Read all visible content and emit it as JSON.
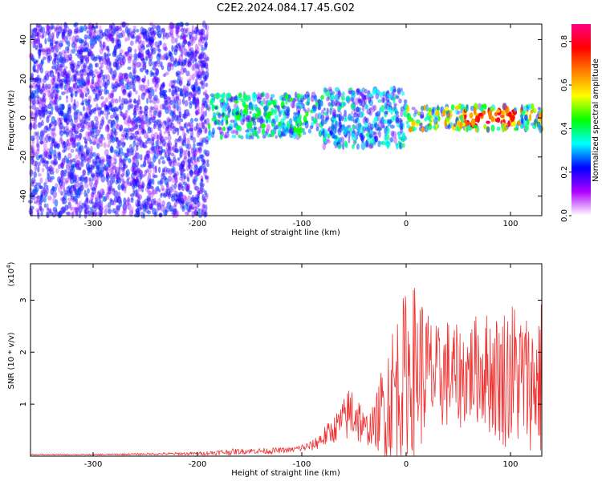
{
  "title": "C2E2.2024.084.17.45.G02",
  "chart_data": [
    {
      "type": "heatmap",
      "xlabel": "Height of straight line (km)",
      "ylabel": "Frequency (Hz)",
      "xlim": [
        -360,
        130
      ],
      "ylim": [
        -50,
        48
      ],
      "x_ticks": [
        -300,
        -200,
        -100,
        0,
        100
      ],
      "y_ticks": [
        -40,
        -20,
        0,
        20,
        40
      ],
      "colorbar": {
        "label": "Normalized spectral amplitude",
        "range": [
          0,
          0.88
        ],
        "ticks": [
          0.0,
          0.2,
          0.4,
          0.6,
          0.8
        ],
        "colors": [
          "#ffffff",
          "#b000ff",
          "#0000ff",
          "#00ffff",
          "#00ff00",
          "#ffff00",
          "#ff8000",
          "#ff0000",
          "#ff0080"
        ]
      },
      "regions": [
        {
          "x_range": [
            -360,
            -190
          ],
          "freq_band": [
            -50,
            48
          ],
          "amplitude": 0.15,
          "description_level": "low, scattered"
        },
        {
          "x_range": [
            -190,
            -80
          ],
          "freq_band": [
            -10,
            12
          ],
          "amplitude": 0.3
        },
        {
          "x_range": [
            -80,
            0
          ],
          "freq_band": [
            -15,
            15
          ],
          "amplitude": 0.25
        },
        {
          "x_range": [
            0,
            130
          ],
          "freq_band": [
            -6,
            6
          ],
          "amplitude": 0.45,
          "peak_amplitude": 0.85,
          "peak_x": 80
        }
      ]
    },
    {
      "type": "line",
      "xlabel": "Height of straight line (km)",
      "ylabel": "SNR (10 * v/v)",
      "y_multiplier": "(x10",
      "y_multiplier_exp": "4",
      "y_multiplier_close": ")",
      "xlim": [
        -360,
        130
      ],
      "ylim": [
        0,
        3.7
      ],
      "x_ticks": [
        -300,
        -200,
        -100,
        0,
        100
      ],
      "y_ticks": [
        1,
        2,
        3
      ],
      "color": "#ee3333",
      "series": [
        {
          "x": [
            -360,
            -300,
            -250,
            -200,
            -170,
            -150,
            -130,
            -110,
            -90,
            -80,
            -70,
            -60,
            -50,
            -40,
            -30,
            -20,
            -10,
            0,
            10,
            20,
            30,
            40,
            50,
            60,
            70,
            80,
            90,
            100,
            110,
            120,
            130
          ],
          "y": [
            0.03,
            0.03,
            0.04,
            0.05,
            0.08,
            0.1,
            0.1,
            0.12,
            0.2,
            0.35,
            0.5,
            0.7,
            0.9,
            0.5,
            0.6,
            1.0,
            1.3,
            1.6,
            1.7,
            1.6,
            1.5,
            1.6,
            1.5,
            1.6,
            1.7,
            1.6,
            1.5,
            1.6,
            1.5,
            1.4,
            1.5
          ],
          "spread": [
            0.01,
            0.01,
            0.02,
            0.03,
            0.06,
            0.05,
            0.06,
            0.05,
            0.1,
            0.2,
            0.25,
            0.4,
            0.7,
            0.3,
            0.4,
            1.2,
            1.5,
            1.6,
            1.7,
            1.3,
            1.0,
            1.1,
            1.0,
            1.0,
            1.1,
            1.2,
            1.3,
            1.5,
            1.4,
            1.3,
            1.6
          ]
        }
      ]
    }
  ]
}
